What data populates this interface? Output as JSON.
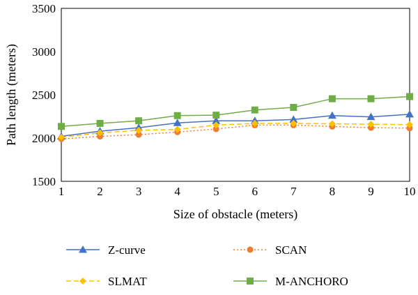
{
  "chart_data": {
    "type": "line",
    "title": "",
    "xlabel": "Size of obstacle (meters)",
    "ylabel": "Path length (meters)",
    "x": [
      1,
      2,
      3,
      4,
      5,
      6,
      7,
      8,
      9,
      10
    ],
    "xlim": [
      1,
      10
    ],
    "ylim": [
      1500,
      3500
    ],
    "yticks": [
      1500,
      2000,
      2500,
      3000,
      3500
    ],
    "grid": false,
    "legend_position": "bottom",
    "series": [
      {
        "name": "Z-curve",
        "color": "#4472C4",
        "marker": "triangle",
        "dash": "solid",
        "values": [
          2020,
          2080,
          2120,
          2175,
          2200,
          2200,
          2215,
          2260,
          2245,
          2275
        ]
      },
      {
        "name": "SCAN",
        "color": "#ED7D31",
        "marker": "circle",
        "dash": "dotted",
        "values": [
          1990,
          2020,
          2040,
          2070,
          2105,
          2150,
          2150,
          2135,
          2120,
          2115
        ]
      },
      {
        "name": "SLMAT",
        "color": "#FFC000",
        "marker": "diamond",
        "dash": "dashed",
        "values": [
          2010,
          2060,
          2090,
          2100,
          2150,
          2170,
          2170,
          2165,
          2160,
          2155
        ]
      },
      {
        "name": "M-ANCHORO",
        "color": "#70AD47",
        "marker": "square",
        "dash": "solid",
        "values": [
          2135,
          2170,
          2200,
          2260,
          2265,
          2325,
          2355,
          2455,
          2455,
          2480
        ]
      }
    ]
  }
}
